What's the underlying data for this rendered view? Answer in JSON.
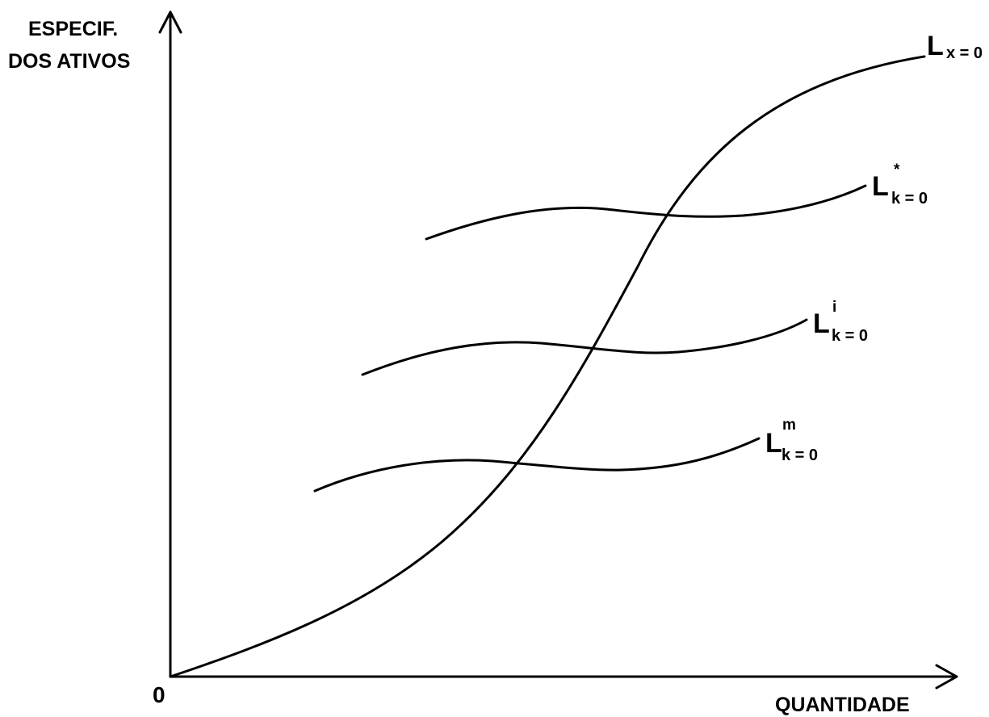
{
  "axes": {
    "y_label_line1": "ESPECIF.",
    "y_label_line2": "DOS ATIVOS",
    "x_label": "QUANTIDADE",
    "origin": "0"
  },
  "curves": {
    "lx": {
      "main": "L",
      "sub": "x = 0",
      "sup": ""
    },
    "lk_star": {
      "main": "L",
      "sub": "k = 0",
      "sup": "*"
    },
    "lk_i": {
      "main": "L",
      "sub": "k = 0",
      "sup": "i"
    },
    "lk_m": {
      "main": "L",
      "sub": "k = 0",
      "sup": "m"
    }
  }
}
